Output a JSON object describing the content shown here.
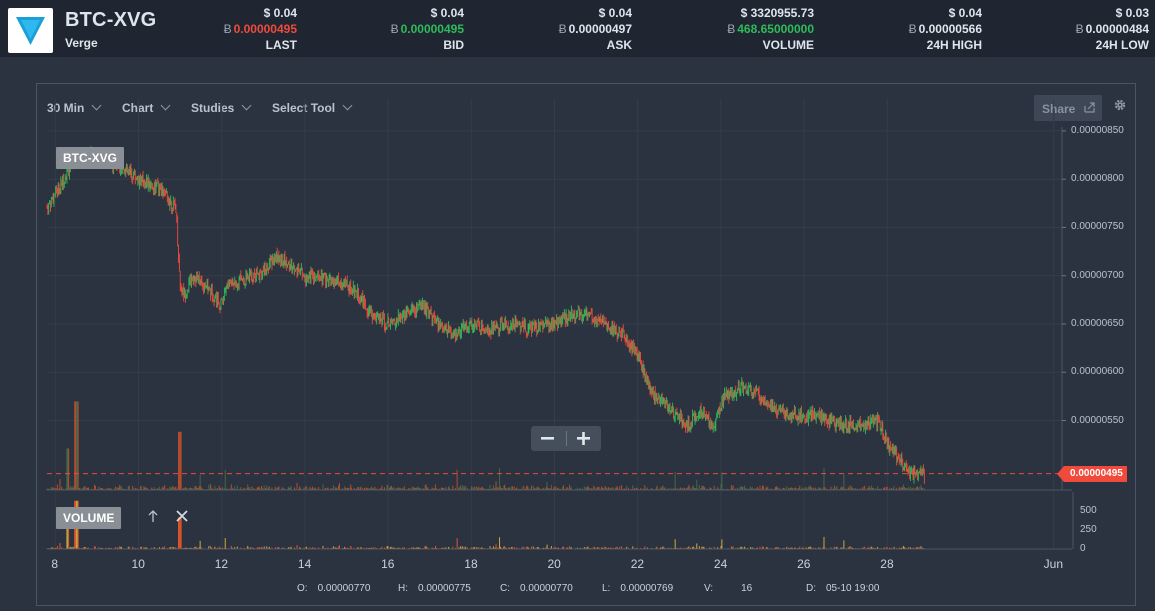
{
  "header": {
    "pair": "BTC-XVG",
    "coin_name": "Verge",
    "stats": [
      {
        "usd": "$ 0.04",
        "btc_symbol": "Ƀ",
        "btc": "0.00000495",
        "label": "LAST",
        "color": "red"
      },
      {
        "usd": "$ 0.04",
        "btc_symbol": "Ƀ",
        "btc": "0.00000495",
        "label": "BID",
        "color": "green"
      },
      {
        "usd": "$ 0.04",
        "btc_symbol": "Ƀ",
        "btc": "0.00000497",
        "label": "ASK",
        "color": "plain"
      },
      {
        "usd": "$ 3320955.73",
        "btc_symbol": "Ƀ",
        "btc": "468.65000000",
        "label": "VOLUME",
        "color": "green"
      },
      {
        "usd": "$ 0.04",
        "btc_symbol": "Ƀ",
        "btc": "0.00000566",
        "label": "24H HIGH",
        "color": "plain"
      },
      {
        "usd": "$ 0.03",
        "btc_symbol": "Ƀ",
        "btc": "0.00000484",
        "label": "24H LOW",
        "color": "plain"
      }
    ]
  },
  "toolbar": {
    "interval": "30 Min",
    "chart": "Chart",
    "studies": "Studies",
    "select_tool": "Select Tool",
    "share": "Share"
  },
  "labels": {
    "series": "BTC-XVG",
    "volume": "VOLUME"
  },
  "colors": {
    "up": "#2fbb5a",
    "down": "#f04a3c",
    "volume_up": "#4f7a4a",
    "volume_down": "#e0552a",
    "accent": "#1a9fd8"
  },
  "icons": [
    "verge-logo-icon",
    "chevron-down-icon",
    "share-icon",
    "gear-icon",
    "arrow-up-icon",
    "close-icon",
    "minus-icon",
    "plus-icon"
  ],
  "chart_data": {
    "type": "line",
    "y_ticks": [
      "0.00000850",
      "0.00000800",
      "0.00000750",
      "0.00000700",
      "0.00000650",
      "0.00000600",
      "0.00000550"
    ],
    "ylim": [
      4.78e-06,
      8.52e-06
    ],
    "last_price": "0.00000495",
    "x_ticks": [
      "8",
      "10",
      "12",
      "14",
      "16",
      "18",
      "20",
      "22",
      "24",
      "26",
      "28",
      "Jun"
    ],
    "x_tick_days": [
      8,
      10,
      12,
      14,
      16,
      18,
      20,
      22,
      24,
      26,
      28,
      32
    ],
    "xlim": [
      7.8,
      32.2
    ],
    "series": [
      {
        "x": [
          7.8,
          8.2,
          8.5,
          9.0,
          9.5,
          10.0,
          10.5,
          10.9,
          11.0,
          11.1,
          11.3,
          11.6,
          12.0,
          12.1,
          12.4,
          12.8,
          13.0,
          13.3,
          13.5,
          14.0,
          14.5,
          15.0,
          15.3,
          15.6,
          16.0,
          16.4,
          16.8,
          17.2,
          17.6,
          18.0,
          18.5,
          19.0,
          19.5,
          20.0,
          20.4,
          20.8,
          21.2,
          21.6,
          22.0,
          22.3,
          22.6,
          22.9,
          23.2,
          23.5,
          23.8,
          24.1,
          24.5,
          24.8,
          25.1,
          25.4,
          25.8,
          26.2,
          26.6,
          27.0,
          27.4,
          27.8,
          28.0,
          28.3,
          28.6,
          28.9
        ],
        "y": [
          7.7e-06,
          8e-06,
          8.25e-06,
          8.23e-06,
          8.15e-06,
          8e-06,
          7.9e-06,
          7.7e-06,
          6.9e-06,
          6.8e-06,
          7e-06,
          6.9e-06,
          6.7e-06,
          6.9e-06,
          6.95e-06,
          7e-06,
          7.05e-06,
          7.2e-06,
          7.15e-06,
          7e-06,
          6.95e-06,
          6.9e-06,
          6.8e-06,
          6.6e-06,
          6.5e-06,
          6.6e-06,
          6.7e-06,
          6.5e-06,
          6.4e-06,
          6.5e-06,
          6.45e-06,
          6.5e-06,
          6.45e-06,
          6.5e-06,
          6.6e-06,
          6.6e-06,
          6.5e-06,
          6.4e-06,
          6.2e-06,
          5.8e-06,
          5.7e-06,
          5.55e-06,
          5.45e-06,
          5.6e-06,
          5.45e-06,
          5.75e-06,
          5.85e-06,
          5.8e-06,
          5.7e-06,
          5.6e-06,
          5.55e-06,
          5.55e-06,
          5.5e-06,
          5.45e-06,
          5.45e-06,
          5.5e-06,
          5.25e-06,
          5.1e-06,
          4.95e-06,
          4.95e-06
        ]
      }
    ],
    "volume": {
      "y_ticks": [
        "500",
        "250",
        "0"
      ],
      "ylim": [
        0,
        650
      ]
    },
    "ohlc_readout": {
      "o_label": "O:",
      "o": "0.00000770",
      "h_label": "H:",
      "h": "0.00000775",
      "c_label": "C:",
      "c": "0.00000770",
      "l_label": "L:",
      "l": "0.00000769",
      "v_label": "V:",
      "v": "16",
      "d_label": "D:",
      "d": "05-10 19:00"
    }
  }
}
